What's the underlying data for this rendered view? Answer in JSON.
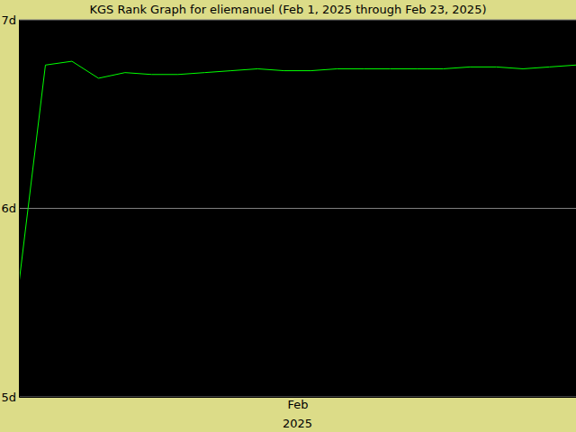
{
  "chart_data": {
    "type": "line",
    "title": "KGS Rank Graph for eliemanuel (Feb 1, 2025 through Feb 23, 2025)",
    "x": [
      0,
      1,
      2,
      3,
      4,
      5,
      6,
      7,
      8,
      9,
      10,
      11,
      12,
      13,
      14,
      15,
      16,
      17,
      18,
      19,
      20,
      21
    ],
    "values": [
      5.6,
      6.76,
      6.78,
      6.69,
      6.72,
      6.71,
      6.71,
      6.72,
      6.73,
      6.74,
      6.73,
      6.73,
      6.74,
      6.74,
      6.74,
      6.74,
      6.74,
      6.75,
      6.75,
      6.74,
      6.75,
      6.76
    ],
    "color": "#00ff00",
    "xlim": [
      0,
      21
    ],
    "xticks": [
      {
        "value": 10.5,
        "label": "Feb"
      }
    ],
    "xlabel": "2025",
    "ylim": [
      5,
      7
    ],
    "yticks": [
      {
        "value": 5,
        "label": "5d"
      },
      {
        "value": 6,
        "label": "6d"
      },
      {
        "value": 7,
        "label": "7d"
      }
    ],
    "grid": true
  }
}
